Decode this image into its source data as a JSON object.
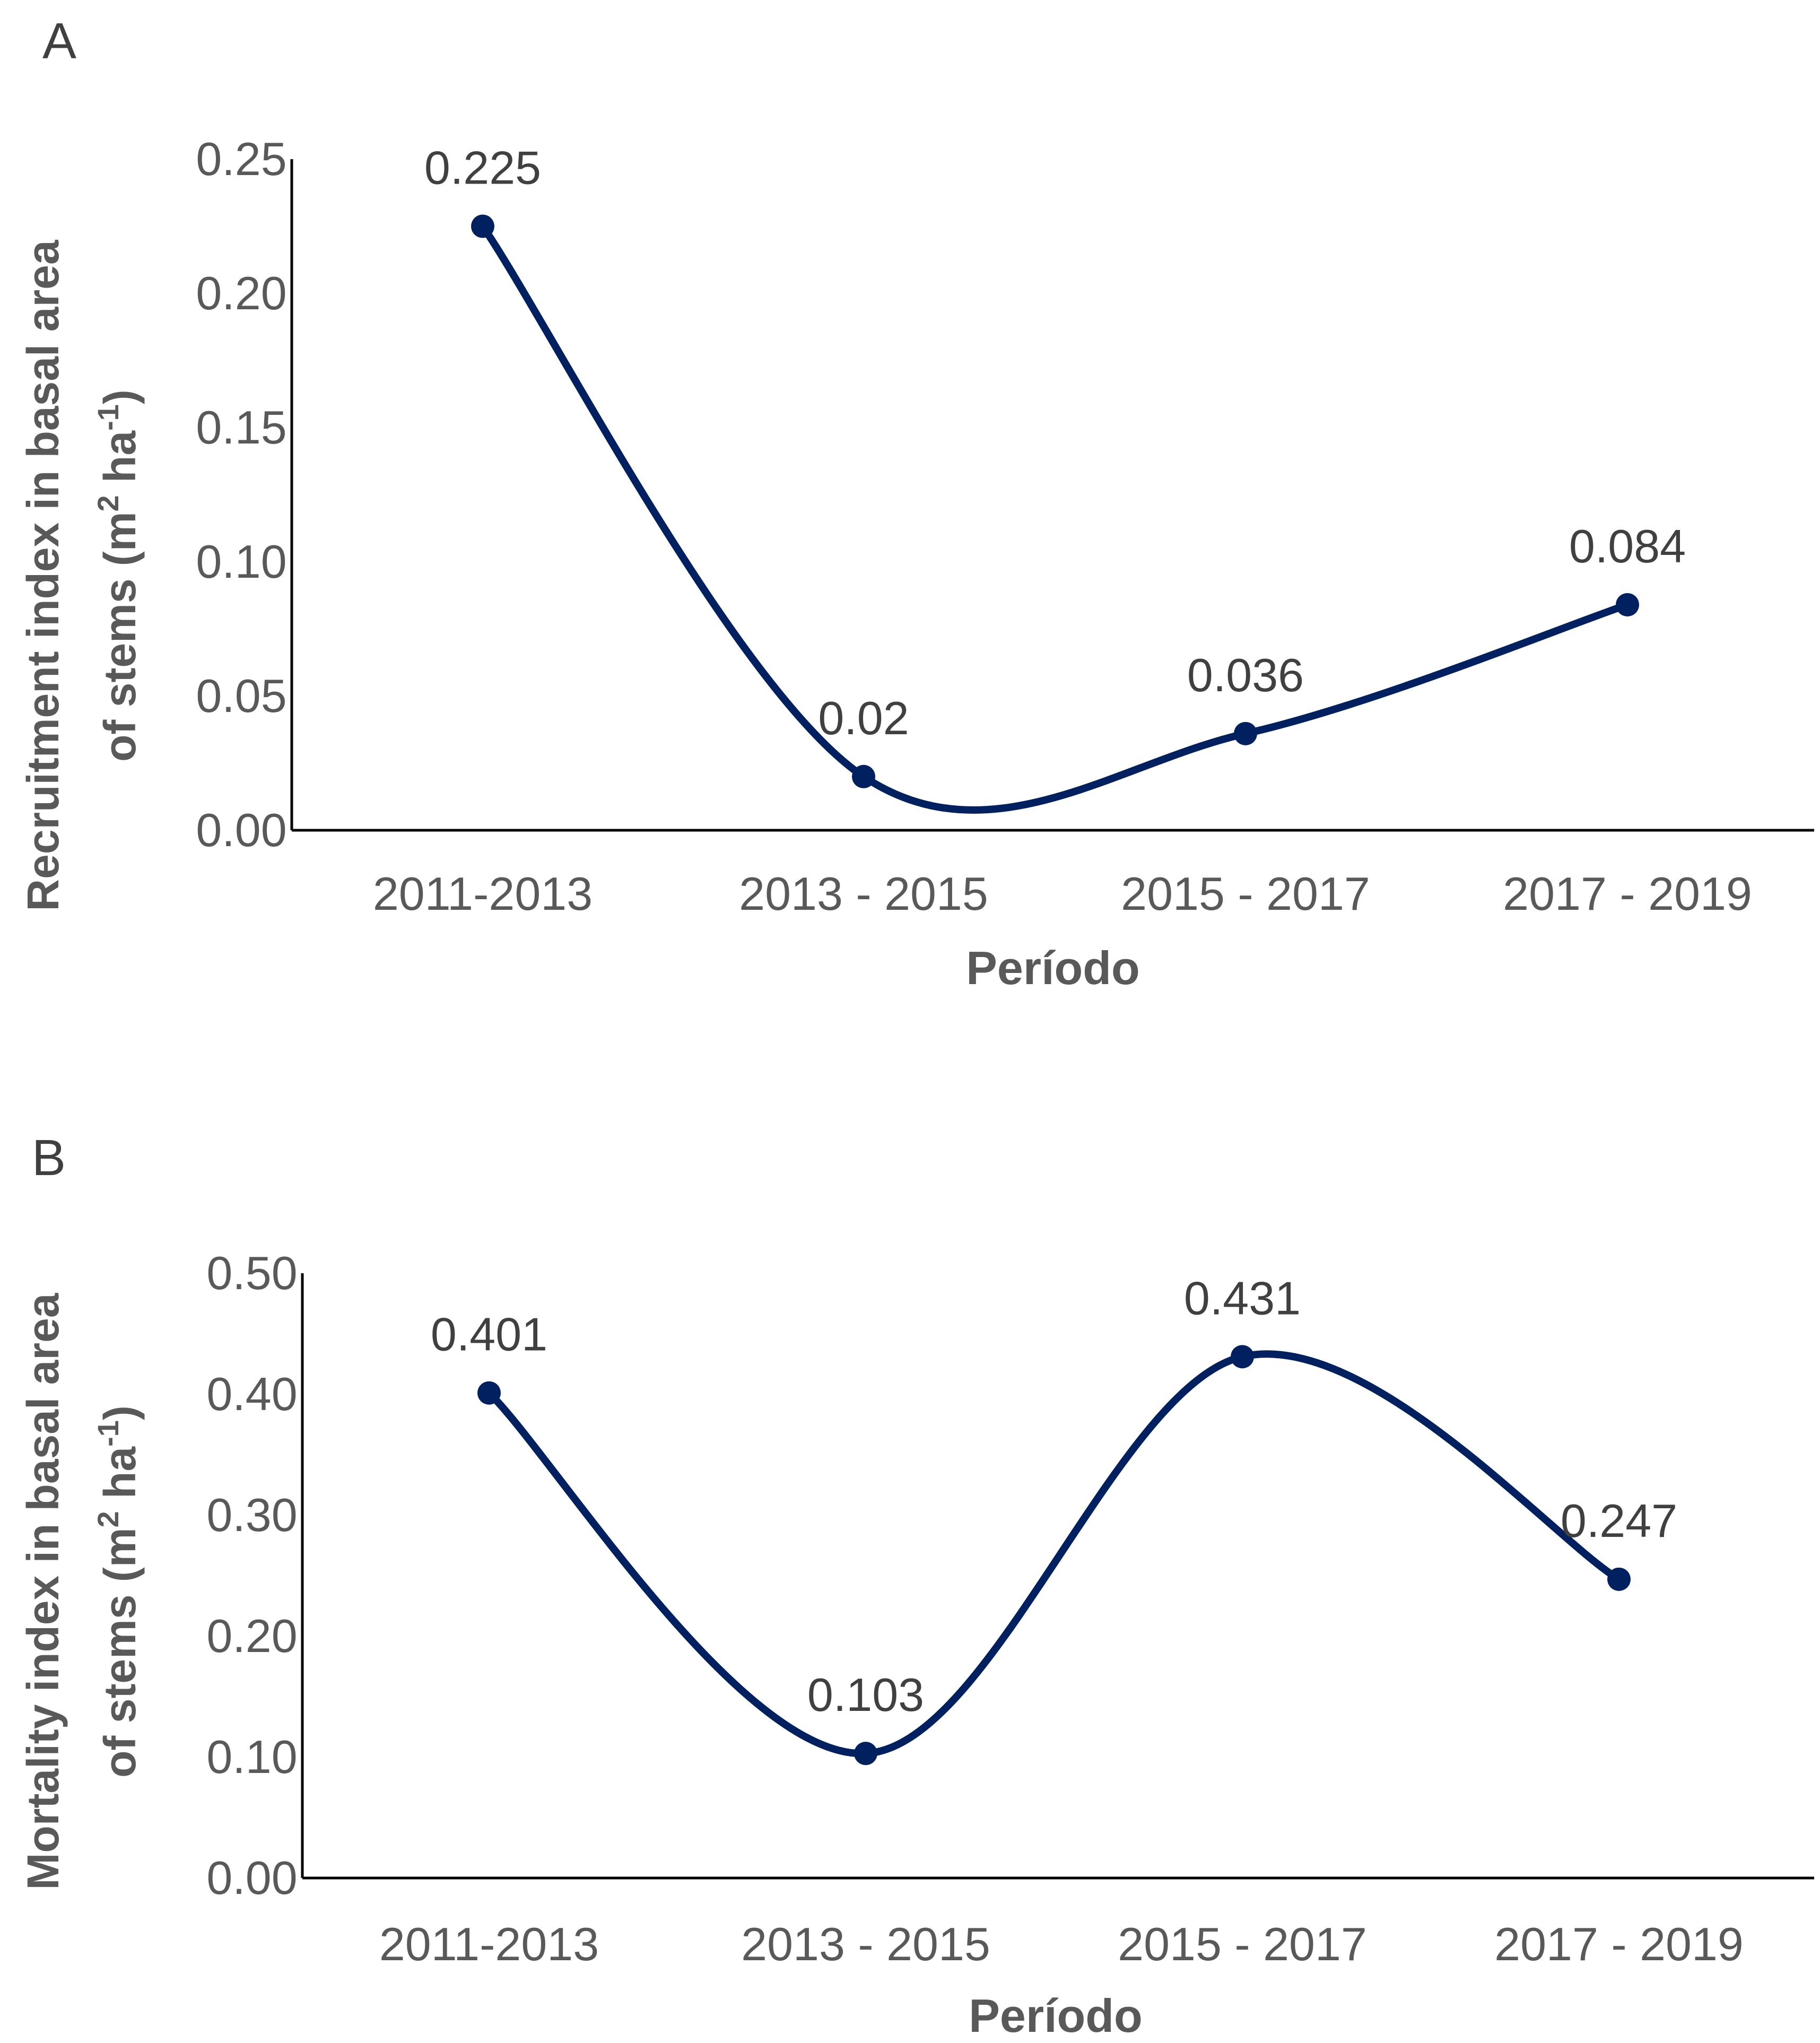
{
  "chart_data": [
    {
      "type": "line",
      "panel_label": "A",
      "categories": [
        "2011-2013",
        "2013 - 2015",
        "2015 - 2017",
        "2017 - 2019"
      ],
      "values": [
        0.225,
        0.02,
        0.036,
        0.084
      ],
      "data_labels": [
        "0.225",
        "0.02",
        "0.036",
        "0.084"
      ],
      "y_ticks": [
        "0.00",
        "0.05",
        "0.10",
        "0.15",
        "0.20",
        "0.25"
      ],
      "ylim": [
        0,
        0.25
      ],
      "xlabel": "Período",
      "ylabel_line1": "Recruitment index in basal area",
      "ylabel_line2_main": "of stems  (m",
      "ylabel_sup1": "2",
      "ylabel_mid": " ha",
      "ylabel_sup2": "-1",
      "ylabel_end": ")",
      "smooth": true,
      "color": "#002060"
    },
    {
      "type": "line",
      "panel_label": "B",
      "categories": [
        "2011-2013",
        "2013 - 2015",
        "2015 - 2017",
        "2017 - 2019"
      ],
      "values": [
        0.401,
        0.103,
        0.431,
        0.247
      ],
      "data_labels": [
        "0.401",
        "0.103",
        "0.431",
        "0.247"
      ],
      "y_ticks": [
        "0.00",
        "0.10",
        "0.20",
        "0.30",
        "0.40",
        "0.50"
      ],
      "ylim": [
        0,
        0.5
      ],
      "xlabel": "Período",
      "ylabel_line1": "Mortality index in basal area",
      "ylabel_line2_main": "of stems  (m",
      "ylabel_sup1": "2",
      "ylabel_mid": " ha",
      "ylabel_sup2": "-1",
      "ylabel_end": ")",
      "smooth": true,
      "color": "#002060"
    }
  ]
}
